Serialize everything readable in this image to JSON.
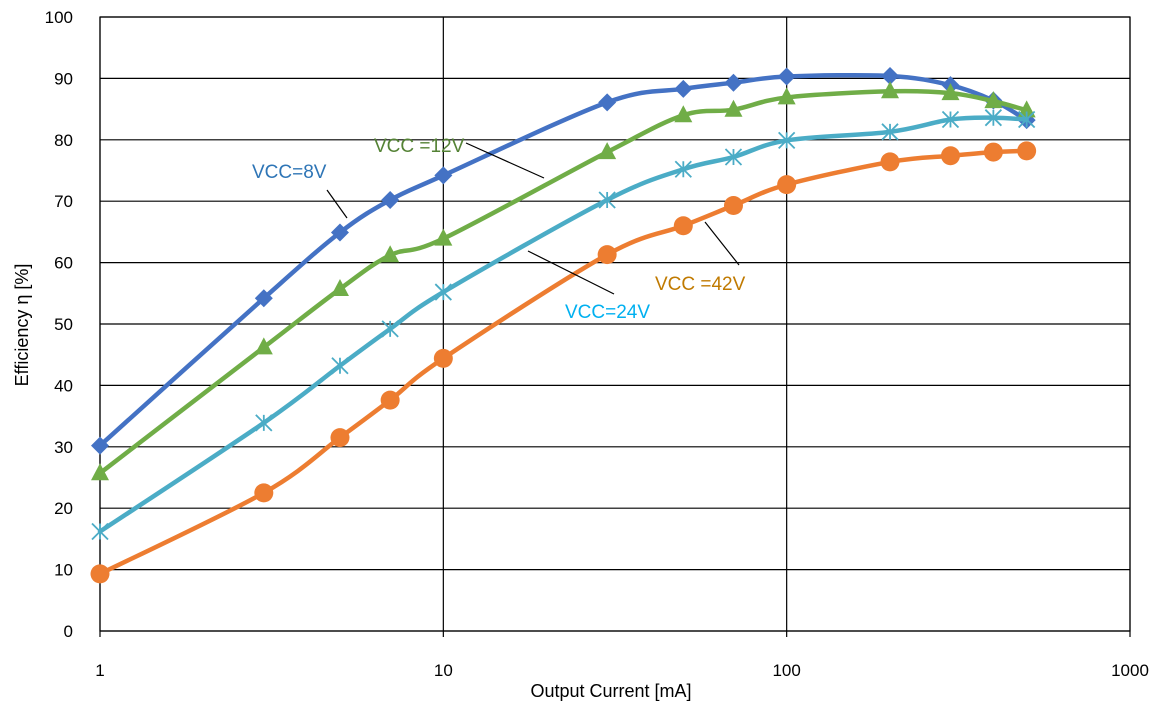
{
  "chart_data": {
    "type": "line",
    "title": "",
    "xlabel": "Output Current [mA]",
    "ylabel": "Efficiency η [%]",
    "x_scale": "log",
    "xlim": [
      1,
      1000
    ],
    "ylim": [
      0,
      100
    ],
    "x_ticks": [
      "1",
      "10",
      "100",
      "1000"
    ],
    "y_ticks": [
      "0",
      "10",
      "20",
      "30",
      "40",
      "50",
      "60",
      "70",
      "80",
      "90",
      "100"
    ],
    "grid": true,
    "legend": "none",
    "series": [
      {
        "name": "VCC=8V",
        "label_text": "VCC=8V",
        "color": "#4472C4",
        "marker": "diamond",
        "x": [
          1,
          3,
          5,
          7,
          10,
          30,
          50,
          70,
          100,
          200,
          300,
          400,
          500
        ],
        "y": [
          30.2,
          54.2,
          64.9,
          70.2,
          74.2,
          86.1,
          88.3,
          89.3,
          90.3,
          90.4,
          88.9,
          86.4,
          83.2
        ]
      },
      {
        "name": "VCC =12V",
        "label_text": "VCC =12V",
        "color": "#70AD47",
        "marker": "triangle",
        "x": [
          1,
          3,
          5,
          7,
          10,
          30,
          50,
          70,
          100,
          200,
          300,
          400,
          500
        ],
        "y": [
          25.7,
          46.2,
          55.7,
          61.2,
          63.9,
          78.0,
          84.0,
          84.9,
          86.9,
          87.9,
          87.6,
          86.3,
          84.8
        ]
      },
      {
        "name": "VCC=24V",
        "label_text": "VCC=24V",
        "color": "#4BACC6",
        "marker": "asterisk",
        "x": [
          1,
          3,
          5,
          7,
          10,
          30,
          50,
          70,
          100,
          200,
          300,
          400,
          500
        ],
        "y": [
          16.2,
          33.9,
          43.2,
          49.2,
          55.2,
          70.2,
          75.2,
          77.2,
          79.9,
          81.3,
          83.3,
          83.6,
          83.3
        ]
      },
      {
        "name": "VCC =42V",
        "label_text": "VCC =42V",
        "color": "#ED7D31",
        "marker": "circle",
        "x": [
          1,
          3,
          5,
          7,
          10,
          30,
          50,
          70,
          100,
          200,
          300,
          400,
          500
        ],
        "y": [
          9.3,
          22.5,
          31.5,
          37.6,
          44.4,
          61.3,
          66.0,
          69.3,
          72.7,
          76.4,
          77.4,
          78.0,
          78.2
        ]
      }
    ]
  }
}
